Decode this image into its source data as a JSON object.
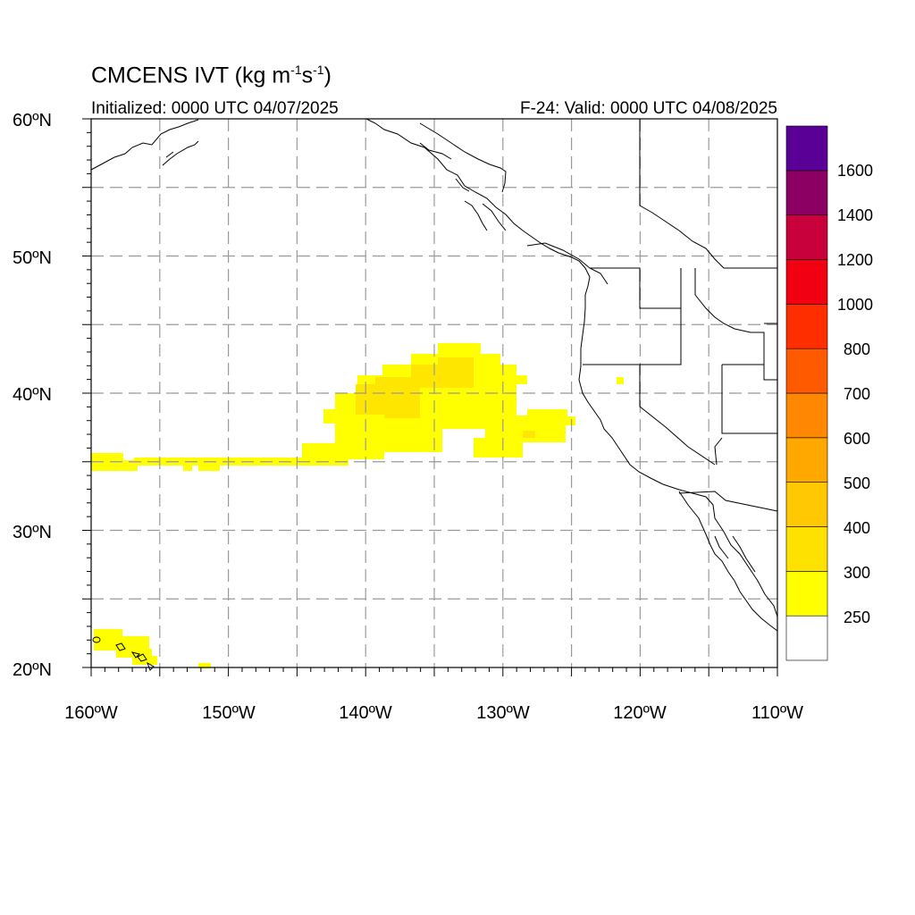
{
  "header": {
    "title_main": "CMCENS IVT (kg m",
    "title_exp1": "-1",
    "title_mid": "s",
    "title_exp2": "-1",
    "title_end": ")",
    "initialized": "Initialized: 0000 UTC 04/07/2025",
    "valid": "F-24: Valid: 0000 UTC 04/08/2025"
  },
  "map": {
    "lon_range": [
      -160,
      -110
    ],
    "lat_range": [
      20,
      60
    ],
    "lat_labels": [
      "60ºN",
      "50ºN",
      "40ºN",
      "30ºN",
      "20ºN"
    ],
    "lon_labels": [
      "160ºW",
      "150ºW",
      "140ºW",
      "130ºW",
      "120ºW",
      "110ºW"
    ],
    "grid": true
  },
  "colorbar": {
    "levels": [
      "250",
      "300",
      "400",
      "500",
      "600",
      "700",
      "800",
      "1000",
      "1200",
      "1400",
      "1600"
    ],
    "colors": [
      "#ffffff",
      "#ffff00",
      "#ffe100",
      "#ffc800",
      "#ffa800",
      "#ff8800",
      "#ff5a00",
      "#ff2e00",
      "#f00010",
      "#c8003c",
      "#8c0064",
      "#5a0096"
    ]
  }
}
